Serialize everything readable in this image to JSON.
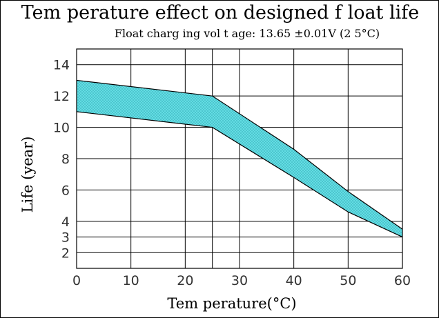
{
  "chart_data": {
    "type": "area",
    "title": "Tem perature effect on designed f loat life",
    "subtitle": "Float charg ing vol t age: 13.65 ±0.01V (2 5°C)",
    "xlabel": "Tem perature(°C)",
    "ylabel": "Life (year)",
    "xlim": [
      0,
      60
    ],
    "ylim": [
      1,
      15
    ],
    "x_ticks": [
      0,
      10,
      20,
      30,
      40,
      50,
      60
    ],
    "x_tick_labels": [
      "0",
      "10",
      "20",
      "30",
      "40",
      "50",
      "60"
    ],
    "y_ticks": [
      2,
      3,
      4,
      6,
      8,
      10,
      12,
      14
    ],
    "y_tick_labels": [
      "2",
      "3",
      "4",
      "6",
      "8",
      "10",
      "12",
      "14"
    ],
    "x_grid": [
      0,
      10,
      20,
      25,
      30,
      40,
      50,
      60
    ],
    "y_grid": [
      2,
      3,
      4,
      6,
      8,
      10,
      12,
      14
    ],
    "grid": true,
    "band": {
      "upper": [
        [
          0,
          13
        ],
        [
          25,
          12
        ],
        [
          40,
          8.6
        ],
        [
          50,
          5.9
        ],
        [
          60,
          3.5
        ]
      ],
      "lower": [
        [
          0,
          11
        ],
        [
          25,
          10
        ],
        [
          40,
          6.8
        ],
        [
          50,
          4.6
        ],
        [
          60,
          3
        ]
      ]
    },
    "colors": {
      "band_fill": "#66e0e6",
      "band_hatch": "#3fb8c2",
      "line": "#000000"
    }
  }
}
